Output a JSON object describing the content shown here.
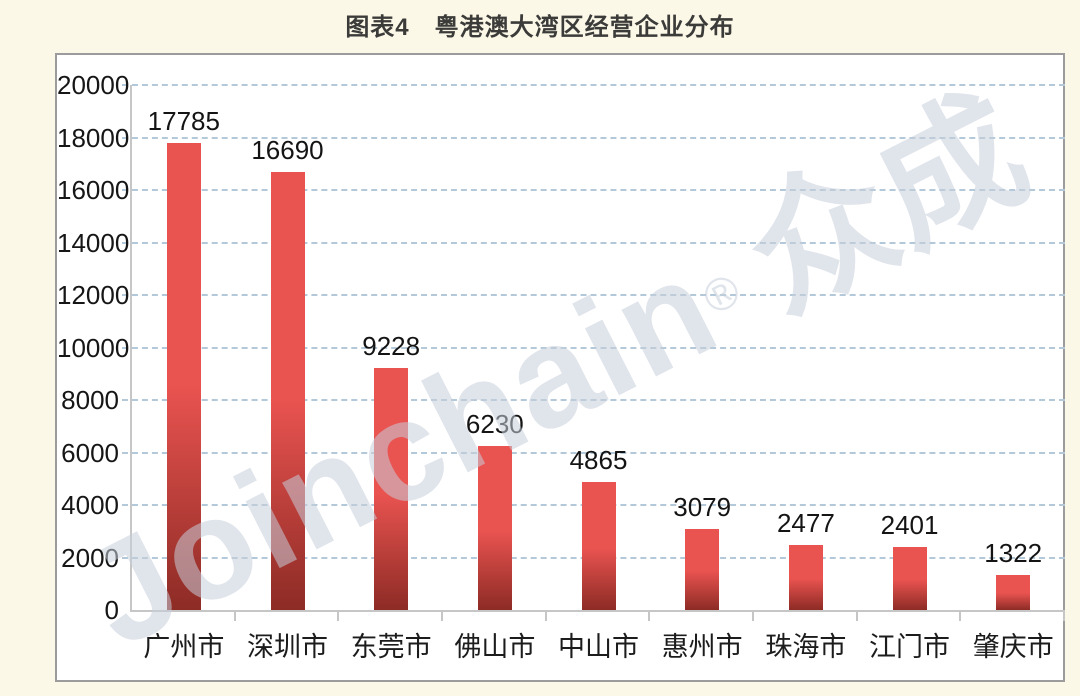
{
  "page": {
    "title": "图表4　粤港澳大湾区经营企业分布"
  },
  "watermark": {
    "brand": "Joinchain",
    "registered_mark": "®",
    "suffix": "众成"
  },
  "chart_data": {
    "type": "bar",
    "title": "图表4　粤港澳大湾区经营企业分布",
    "categories": [
      "广州市",
      "深圳市",
      "东莞市",
      "佛山市",
      "中山市",
      "惠州市",
      "珠海市",
      "江门市",
      "肇庆市"
    ],
    "values": [
      17785,
      16690,
      9228,
      6230,
      4865,
      3079,
      2477,
      2401,
      1322
    ],
    "data_labels_shown": true,
    "xlabel": "",
    "ylabel": "",
    "ylim": [
      0,
      20000
    ],
    "ytick_interval": 2000,
    "yticks": [
      0,
      2000,
      4000,
      6000,
      8000,
      10000,
      12000,
      14000,
      16000,
      18000,
      20000
    ],
    "grid": {
      "horizontal": true,
      "style": "dashed"
    },
    "legend": {
      "shown": false
    },
    "colors": {
      "bar_top": "#e95350",
      "bar_bottom": "#8d2b25",
      "gridline": "#b3c9d9",
      "axis": "#c6c6c6",
      "plot_background": "#ffffff",
      "page_background": "#fcf8e8",
      "panel_border": "#9c9c9c",
      "label_text": "#1a1a1a",
      "watermark": "#dfe3eb"
    }
  }
}
